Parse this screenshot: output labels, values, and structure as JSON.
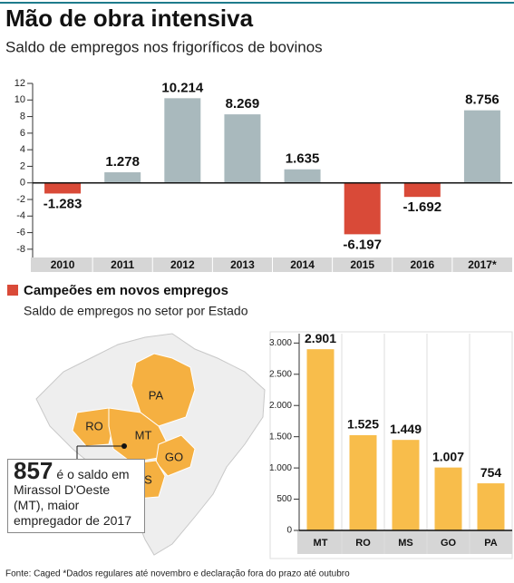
{
  "chart_data": [
    {
      "type": "bar",
      "title": "Mão de obra intensiva",
      "subtitle": "Saldo de empregos nos frigoríficos de bovinos",
      "categories": [
        "2010",
        "2011",
        "2012",
        "2013",
        "2014",
        "2015",
        "2016",
        "2017*"
      ],
      "values": [
        -1.283,
        1.278,
        10.214,
        8.269,
        1.635,
        -6.197,
        -1.692,
        8.756
      ],
      "positive_color": "#a9b9bd",
      "negative_color": "#d94a38",
      "ylim": [
        -9,
        12
      ],
      "yticks": [
        12,
        10,
        8,
        6,
        4,
        2,
        0,
        -2,
        -4,
        -6,
        -8
      ]
    },
    {
      "type": "bar",
      "title": "Campeões em novos empregos",
      "subtitle": "Saldo de empregos no setor por Estado",
      "categories": [
        "MT",
        "RO",
        "MS",
        "GO",
        "PA"
      ],
      "values": [
        2901,
        1525,
        1449,
        1007,
        754
      ],
      "value_labels": [
        "2.901",
        "1.525",
        "1.449",
        "1.007",
        "754"
      ],
      "color": "#f8bd4b",
      "ylim": [
        0,
        3150
      ],
      "yticks": [
        {
          "value": 3000,
          "label": "3.000"
        },
        {
          "value": 2500,
          "label": "2.500"
        },
        {
          "value": 2000,
          "label": "2.000"
        },
        {
          "value": 1500,
          "label": "1.500"
        },
        {
          "value": 1000,
          "label": "1.000"
        },
        500,
        0
      ]
    }
  ],
  "map": {
    "labels": [
      "PA",
      "RO",
      "MT",
      "GO",
      "MS"
    ]
  },
  "annotation": {
    "number": 857,
    "text": "é o saldo em Mirassol D'Oeste (MT), maior empregador de 2017"
  },
  "source": "Fonte: Caged *Dados regulares até novembro e declaração fora do prazo até outubro"
}
